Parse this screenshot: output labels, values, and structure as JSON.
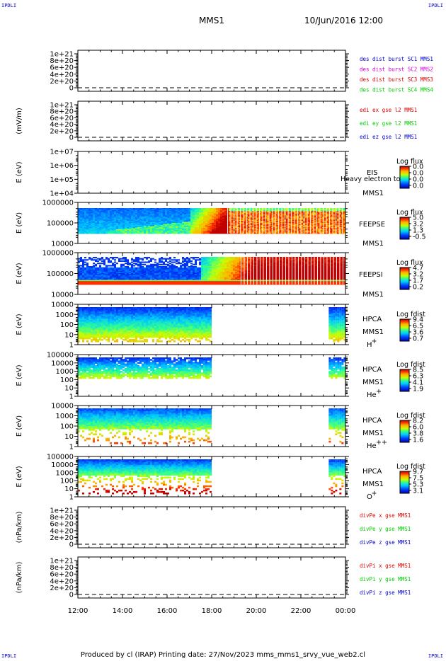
{
  "header": {
    "spacecraft": "MMS1",
    "datetime": "10/Jun/2016 12:00",
    "corner_label": "IPDLI"
  },
  "footer": {
    "text": "Produced by cl (IRAP)   Printing date: 27/Nov/2023   mms_mms1_srvy_vue_web2.cl"
  },
  "colors": {
    "legend_blue": "#0000cc",
    "legend_pink": "#dd00dd",
    "legend_red": "#dd0000",
    "legend_green": "#00cc00"
  },
  "chart_data": [
    {
      "id": "p1",
      "type": "line",
      "ylabel": "",
      "yticks": [
        "1e+21",
        "8e+20",
        "6e+20",
        "4e+20",
        "2e+20",
        "0"
      ],
      "ylim": [
        0,
        1e+21
      ],
      "legend": [
        {
          "text": "des dist burst SC1 MMS1",
          "color": "#0000cc"
        },
        {
          "text": "des dist burst SC2 MMS2",
          "color": "#dd00dd"
        },
        {
          "text": "des dist burst SC3 MMS3",
          "color": "#dd0000"
        },
        {
          "text": "des dist burst SC4 MMS4",
          "color": "#00cc00"
        }
      ]
    },
    {
      "id": "p2",
      "type": "line",
      "ylabel": "(mV/m)",
      "yticks": [
        "1e+21",
        "8e+20",
        "6e+20",
        "4e+20",
        "2e+20",
        "0"
      ],
      "ylim": [
        0,
        1e+21
      ],
      "legend": [
        {
          "text": "edi ex gse l2 MMS1",
          "color": "#dd0000"
        },
        {
          "text": "edi ey gse l2 MMS1",
          "color": "#00cc00"
        },
        {
          "text": "edi ez gse l2 MMS1",
          "color": "#0000cc"
        }
      ]
    },
    {
      "id": "p3",
      "type": "heatmap",
      "ylabel": "E (eV)",
      "yticks": [
        "1e+07",
        "1e+06",
        "1e+05",
        "1e+04"
      ],
      "ylim": [
        10000.0,
        10000000.0
      ],
      "inst": [
        "EIS",
        "MMS1"
      ],
      "overlay_text": "Heavy electron to",
      "cb_title": "Log flux",
      "cb_ticks": [
        "0.0",
        "0.0",
        "0.0",
        "0.0"
      ]
    },
    {
      "id": "p4",
      "type": "heatmap",
      "ylabel": "E (eV)",
      "yticks": [
        "1000000",
        "100000",
        "10000"
      ],
      "ylim": [
        10000.0,
        1000000.0
      ],
      "inst": [
        "FEEPSE",
        "MMS1"
      ],
      "cb_title": "Log flux",
      "cb_ticks": [
        "5.0",
        "3.2",
        "1.3",
        "-0.5"
      ]
    },
    {
      "id": "p5",
      "type": "heatmap",
      "ylabel": "E (eV)",
      "yticks": [
        "1000000",
        "100000",
        "10000"
      ],
      "ylim": [
        10000.0,
        1000000.0
      ],
      "inst": [
        "FEEPSI",
        "MMS1"
      ],
      "cb_title": "Log flux",
      "cb_ticks": [
        "4.7",
        "3.2",
        "1.7",
        "0.2"
      ]
    },
    {
      "id": "p6",
      "type": "heatmap",
      "ylabel": "E (eV)",
      "yticks": [
        "10000",
        "1000",
        "100",
        "10",
        "1"
      ],
      "ylim": [
        1,
        30000
      ],
      "inst": [
        "HPCA",
        "MMS1"
      ],
      "species": "H",
      "species_sup": "+",
      "cb_title": "Log fdist",
      "cb_ticks": [
        "9.4",
        "6.5",
        "3.6",
        "0.7"
      ]
    },
    {
      "id": "p7",
      "type": "heatmap",
      "ylabel": "E (eV)",
      "yticks": [
        "100000",
        "10000",
        "1000",
        "100",
        "10",
        "1"
      ],
      "ylim": [
        1,
        100000
      ],
      "inst": [
        "HPCA",
        "MMS1"
      ],
      "species": "He",
      "species_sup": "+",
      "cb_title": "Log fdist",
      "cb_ticks": [
        "8.5",
        "6.3",
        "4.1",
        "1.9"
      ]
    },
    {
      "id": "p8",
      "type": "heatmap",
      "ylabel": "E (eV)",
      "yticks": [
        "10000",
        "1000",
        "100",
        "10",
        "1"
      ],
      "ylim": [
        1,
        30000
      ],
      "inst": [
        "HPCA",
        "MMS1"
      ],
      "species": "He",
      "species_sup": "++",
      "cb_title": "Log fdist",
      "cb_ticks": [
        "8.2",
        "6.0",
        "3.8",
        "1.6"
      ]
    },
    {
      "id": "p9",
      "type": "heatmap",
      "ylabel": "E (eV)",
      "yticks": [
        "100000",
        "10000",
        "1000",
        "100",
        "10",
        "1"
      ],
      "ylim": [
        1,
        100000
      ],
      "inst": [
        "HPCA",
        "MMS1"
      ],
      "species": "O",
      "species_sup": "+",
      "cb_title": "Log fdist",
      "cb_ticks": [
        "9.7",
        "7.5",
        "5.3",
        "3.1"
      ]
    },
    {
      "id": "p10",
      "type": "line",
      "ylabel": "(nPa/km)",
      "yticks": [
        "1e+21",
        "8e+20",
        "6e+20",
        "4e+20",
        "2e+20",
        "0"
      ],
      "ylim": [
        0,
        1e+21
      ],
      "legend": [
        {
          "text": "divPe x gse MMS1",
          "color": "#dd0000"
        },
        {
          "text": "divPe y gse MMS1",
          "color": "#00cc00"
        },
        {
          "text": "divPe z gse MMS1",
          "color": "#0000cc"
        }
      ]
    },
    {
      "id": "p11",
      "type": "line",
      "ylabel": "(nPa/km)",
      "yticks": [
        "1e+21",
        "8e+20",
        "6e+20",
        "4e+20",
        "2e+20",
        "0"
      ],
      "ylim": [
        0,
        1e+21
      ],
      "legend": [
        {
          "text": "divPi x gse MMS1",
          "color": "#dd0000"
        },
        {
          "text": "divPi y gse MMS1",
          "color": "#00cc00"
        },
        {
          "text": "divPi z gse MMS1",
          "color": "#0000cc"
        }
      ]
    }
  ],
  "xaxis": {
    "ticks": [
      "12:00",
      "14:00",
      "16:00",
      "18:00",
      "20:00",
      "22:00",
      "00:00"
    ],
    "range_hours": [
      12,
      24
    ]
  }
}
